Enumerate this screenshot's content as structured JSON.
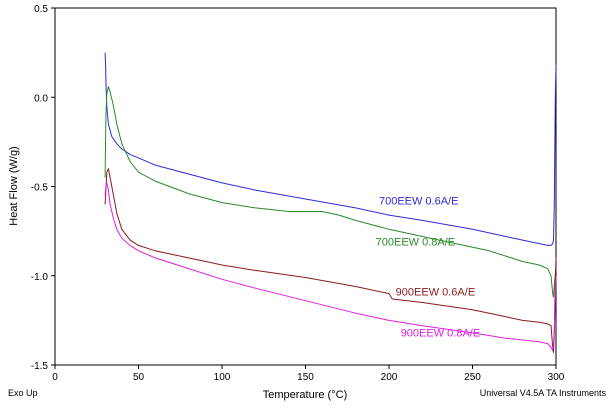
{
  "chart_data": {
    "type": "line",
    "xlabel": "Temperature (°C)",
    "ylabel": "Heat Flow (W/g)",
    "xlim": [
      0,
      300
    ],
    "ylim": [
      -1.5,
      0.5
    ],
    "x_ticks": [
      0,
      50,
      100,
      150,
      200,
      250,
      300
    ],
    "x_tick_labels": [
      "0",
      "50",
      "100",
      "150",
      "200",
      "250",
      "300"
    ],
    "y_ticks": [
      0.5,
      0.0,
      -0.5,
      -1.0,
      -1.5
    ],
    "y_tick_labels": [
      "0.5",
      "0.0",
      "-0.5",
      "-1.0",
      "-1.5"
    ],
    "grid": false,
    "legend": "inline labels",
    "footer_left": "Exo Up",
    "footer_right": "Universal V4.5A TA Instruments",
    "series": [
      {
        "name": "700EEW 0.6A/E",
        "color": "#2b2bd6",
        "label_at": [
          194,
          -0.6
        ],
        "x": [
          30,
          30.3,
          30.6,
          31,
          32,
          34,
          37,
          40,
          45,
          50,
          60,
          80,
          100,
          120,
          150,
          180,
          200,
          220,
          250,
          270,
          280,
          290,
          295,
          297,
          298,
          298.5,
          299,
          299.3,
          299.6,
          300
        ],
        "y": [
          0.25,
          0.18,
          0.05,
          -0.05,
          -0.15,
          -0.22,
          -0.26,
          -0.29,
          -0.32,
          -0.34,
          -0.38,
          -0.43,
          -0.48,
          -0.52,
          -0.57,
          -0.62,
          -0.66,
          -0.69,
          -0.74,
          -0.78,
          -0.8,
          -0.82,
          -0.83,
          -0.83,
          -0.82,
          -0.8,
          -0.6,
          -0.3,
          0.0,
          0.18
        ]
      },
      {
        "name": "700EEW 0.8A/E",
        "color": "#2a8a2a",
        "label_at": [
          192,
          -0.83
        ],
        "x": [
          30,
          30.5,
          31,
          32,
          33,
          35,
          37,
          40,
          45,
          50,
          60,
          80,
          100,
          120,
          140,
          160,
          170,
          180,
          200,
          220,
          240,
          260,
          280,
          290,
          295,
          297,
          298,
          298.5,
          299,
          300
        ],
        "y": [
          -0.45,
          -0.1,
          0.02,
          0.06,
          0.03,
          -0.05,
          -0.15,
          -0.26,
          -0.36,
          -0.42,
          -0.47,
          -0.54,
          -0.59,
          -0.62,
          -0.64,
          -0.64,
          -0.66,
          -0.69,
          -0.74,
          -0.78,
          -0.82,
          -0.86,
          -0.92,
          -0.94,
          -0.96,
          -1.0,
          -1.1,
          -1.12,
          -1.05,
          -0.95
        ]
      },
      {
        "name": "900EEW 0.6A/E",
        "color": "#8b1a1a",
        "label_at": [
          204,
          -1.11
        ],
        "x": [
          30,
          30.5,
          31,
          32,
          33,
          35,
          37,
          40,
          45,
          50,
          60,
          80,
          100,
          120,
          150,
          180,
          200,
          202,
          220,
          250,
          270,
          280,
          290,
          295,
          297,
          298,
          298.5,
          299,
          299.5,
          300
        ],
        "y": [
          -0.6,
          -0.52,
          -0.42,
          -0.4,
          -0.45,
          -0.55,
          -0.65,
          -0.74,
          -0.8,
          -0.83,
          -0.86,
          -0.9,
          -0.94,
          -0.97,
          -1.01,
          -1.06,
          -1.1,
          -1.13,
          -1.15,
          -1.19,
          -1.23,
          -1.25,
          -1.26,
          -1.27,
          -1.28,
          -1.4,
          -1.43,
          -1.32,
          -1.05,
          -0.9
        ]
      },
      {
        "name": "900EEW 0.8A/E",
        "color": "#e01fe0",
        "label_at": [
          207,
          -1.34
        ],
        "x": [
          30,
          30.5,
          31,
          32,
          33,
          35,
          37,
          40,
          45,
          50,
          60,
          80,
          100,
          120,
          150,
          180,
          200,
          220,
          250,
          270,
          280,
          290,
          295,
          297,
          298,
          298.5,
          299,
          299.5,
          300
        ],
        "y": [
          -0.55,
          -0.5,
          -0.48,
          -0.52,
          -0.6,
          -0.68,
          -0.74,
          -0.79,
          -0.83,
          -0.86,
          -0.9,
          -0.96,
          -1.02,
          -1.07,
          -1.14,
          -1.21,
          -1.25,
          -1.28,
          -1.32,
          -1.35,
          -1.36,
          -1.37,
          -1.38,
          -1.4,
          -1.42,
          -1.38,
          -1.3,
          -1.15,
          -1.0
        ]
      }
    ]
  }
}
